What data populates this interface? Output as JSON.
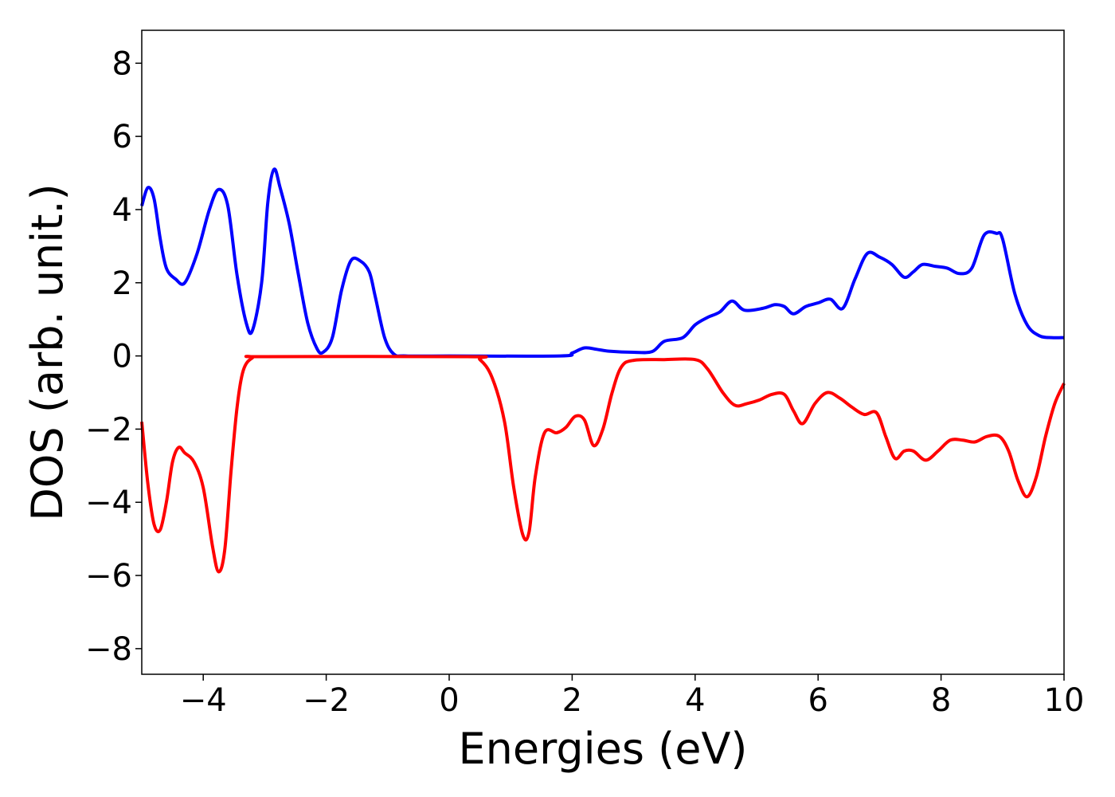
{
  "chart_data": {
    "type": "line",
    "title": "",
    "xlabel": "Energies (eV)",
    "ylabel": "DOS (arb. unit.)",
    "xlim": [
      -5,
      10
    ],
    "ylim": [
      -8.7,
      8.9
    ],
    "xticks": [
      -4,
      -2,
      0,
      2,
      4,
      6,
      8,
      10
    ],
    "yticks": [
      -8,
      -6,
      -4,
      -2,
      0,
      2,
      4,
      6,
      8
    ],
    "xtick_labels": [
      "−4",
      "−2",
      "0",
      "2",
      "4",
      "6",
      "8",
      "10"
    ],
    "ytick_labels": [
      "−8",
      "−6",
      "−4",
      "−2",
      "0",
      "2",
      "4",
      "6",
      "8"
    ],
    "grid": false,
    "legend": "none",
    "series": [
      {
        "color": "#0000ff",
        "points": [
          [
            -5.0,
            4.1
          ],
          [
            -4.9,
            4.6
          ],
          [
            -4.8,
            4.3
          ],
          [
            -4.7,
            3.2
          ],
          [
            -4.6,
            2.4
          ],
          [
            -4.45,
            2.1
          ],
          [
            -4.3,
            2.0
          ],
          [
            -4.1,
            2.8
          ],
          [
            -3.9,
            4.0
          ],
          [
            -3.75,
            4.55
          ],
          [
            -3.6,
            4.1
          ],
          [
            -3.45,
            2.2
          ],
          [
            -3.3,
            0.9
          ],
          [
            -3.2,
            0.7
          ],
          [
            -3.05,
            2.0
          ],
          [
            -2.95,
            4.2
          ],
          [
            -2.85,
            5.1
          ],
          [
            -2.75,
            4.6
          ],
          [
            -2.6,
            3.6
          ],
          [
            -2.45,
            2.2
          ],
          [
            -2.3,
            0.9
          ],
          [
            -2.15,
            0.2
          ],
          [
            -2.05,
            0.1
          ],
          [
            -1.9,
            0.5
          ],
          [
            -1.75,
            1.8
          ],
          [
            -1.6,
            2.6
          ],
          [
            -1.45,
            2.6
          ],
          [
            -1.3,
            2.3
          ],
          [
            -1.2,
            1.6
          ],
          [
            -1.05,
            0.5
          ],
          [
            -0.9,
            0.05
          ],
          [
            -0.7,
            0.0
          ],
          [
            0.0,
            0.0
          ],
          [
            1.8,
            0.0
          ],
          [
            2.0,
            0.08
          ],
          [
            2.2,
            0.22
          ],
          [
            2.4,
            0.18
          ],
          [
            2.6,
            0.13
          ],
          [
            3.0,
            0.1
          ],
          [
            3.3,
            0.12
          ],
          [
            3.5,
            0.4
          ],
          [
            3.8,
            0.5
          ],
          [
            4.0,
            0.85
          ],
          [
            4.2,
            1.05
          ],
          [
            4.4,
            1.2
          ],
          [
            4.6,
            1.5
          ],
          [
            4.8,
            1.25
          ],
          [
            5.1,
            1.3
          ],
          [
            5.3,
            1.4
          ],
          [
            5.45,
            1.35
          ],
          [
            5.6,
            1.15
          ],
          [
            5.8,
            1.35
          ],
          [
            6.0,
            1.45
          ],
          [
            6.2,
            1.55
          ],
          [
            6.4,
            1.3
          ],
          [
            6.6,
            2.1
          ],
          [
            6.8,
            2.8
          ],
          [
            7.0,
            2.7
          ],
          [
            7.2,
            2.5
          ],
          [
            7.4,
            2.15
          ],
          [
            7.55,
            2.3
          ],
          [
            7.7,
            2.5
          ],
          [
            7.9,
            2.45
          ],
          [
            8.1,
            2.4
          ],
          [
            8.3,
            2.25
          ],
          [
            8.5,
            2.4
          ],
          [
            8.7,
            3.3
          ],
          [
            8.9,
            3.35
          ],
          [
            9.0,
            3.2
          ],
          [
            9.2,
            1.7
          ],
          [
            9.4,
            0.85
          ],
          [
            9.6,
            0.55
          ],
          [
            9.8,
            0.5
          ],
          [
            10.0,
            0.5
          ]
        ]
      },
      {
        "color": "#ff0000",
        "points": [
          [
            -5.0,
            -1.8
          ],
          [
            -4.9,
            -3.5
          ],
          [
            -4.8,
            -4.6
          ],
          [
            -4.7,
            -4.75
          ],
          [
            -4.6,
            -4.0
          ],
          [
            -4.5,
            -2.9
          ],
          [
            -4.4,
            -2.5
          ],
          [
            -4.3,
            -2.65
          ],
          [
            -4.15,
            -2.9
          ],
          [
            -4.0,
            -3.6
          ],
          [
            -3.85,
            -5.2
          ],
          [
            -3.75,
            -5.9
          ],
          [
            -3.65,
            -5.3
          ],
          [
            -3.55,
            -3.2
          ],
          [
            -3.45,
            -1.4
          ],
          [
            -3.35,
            -0.4
          ],
          [
            -3.2,
            -0.05
          ],
          [
            -3.0,
            -0.02
          ],
          [
            0.3,
            -0.02
          ],
          [
            0.5,
            -0.1
          ],
          [
            0.7,
            -0.6
          ],
          [
            0.9,
            -1.8
          ],
          [
            1.05,
            -3.6
          ],
          [
            1.2,
            -4.9
          ],
          [
            1.3,
            -4.8
          ],
          [
            1.4,
            -3.3
          ],
          [
            1.55,
            -2.1
          ],
          [
            1.75,
            -2.1
          ],
          [
            1.9,
            -1.95
          ],
          [
            2.05,
            -1.65
          ],
          [
            2.2,
            -1.75
          ],
          [
            2.35,
            -2.45
          ],
          [
            2.5,
            -2.0
          ],
          [
            2.65,
            -1.0
          ],
          [
            2.8,
            -0.3
          ],
          [
            3.0,
            -0.12
          ],
          [
            3.5,
            -0.1
          ],
          [
            4.0,
            -0.1
          ],
          [
            4.2,
            -0.35
          ],
          [
            4.45,
            -1.0
          ],
          [
            4.65,
            -1.35
          ],
          [
            4.85,
            -1.3
          ],
          [
            5.05,
            -1.2
          ],
          [
            5.25,
            -1.05
          ],
          [
            5.45,
            -1.05
          ],
          [
            5.6,
            -1.5
          ],
          [
            5.75,
            -1.85
          ],
          [
            5.95,
            -1.3
          ],
          [
            6.15,
            -1.0
          ],
          [
            6.35,
            -1.15
          ],
          [
            6.55,
            -1.4
          ],
          [
            6.75,
            -1.6
          ],
          [
            6.95,
            -1.55
          ],
          [
            7.1,
            -2.2
          ],
          [
            7.25,
            -2.8
          ],
          [
            7.4,
            -2.6
          ],
          [
            7.55,
            -2.6
          ],
          [
            7.75,
            -2.85
          ],
          [
            7.95,
            -2.6
          ],
          [
            8.15,
            -2.3
          ],
          [
            8.35,
            -2.3
          ],
          [
            8.55,
            -2.35
          ],
          [
            8.75,
            -2.2
          ],
          [
            8.95,
            -2.2
          ],
          [
            9.1,
            -2.6
          ],
          [
            9.25,
            -3.4
          ],
          [
            9.4,
            -3.85
          ],
          [
            9.55,
            -3.3
          ],
          [
            9.7,
            -2.2
          ],
          [
            9.85,
            -1.3
          ],
          [
            10.0,
            -0.75
          ]
        ]
      }
    ]
  }
}
